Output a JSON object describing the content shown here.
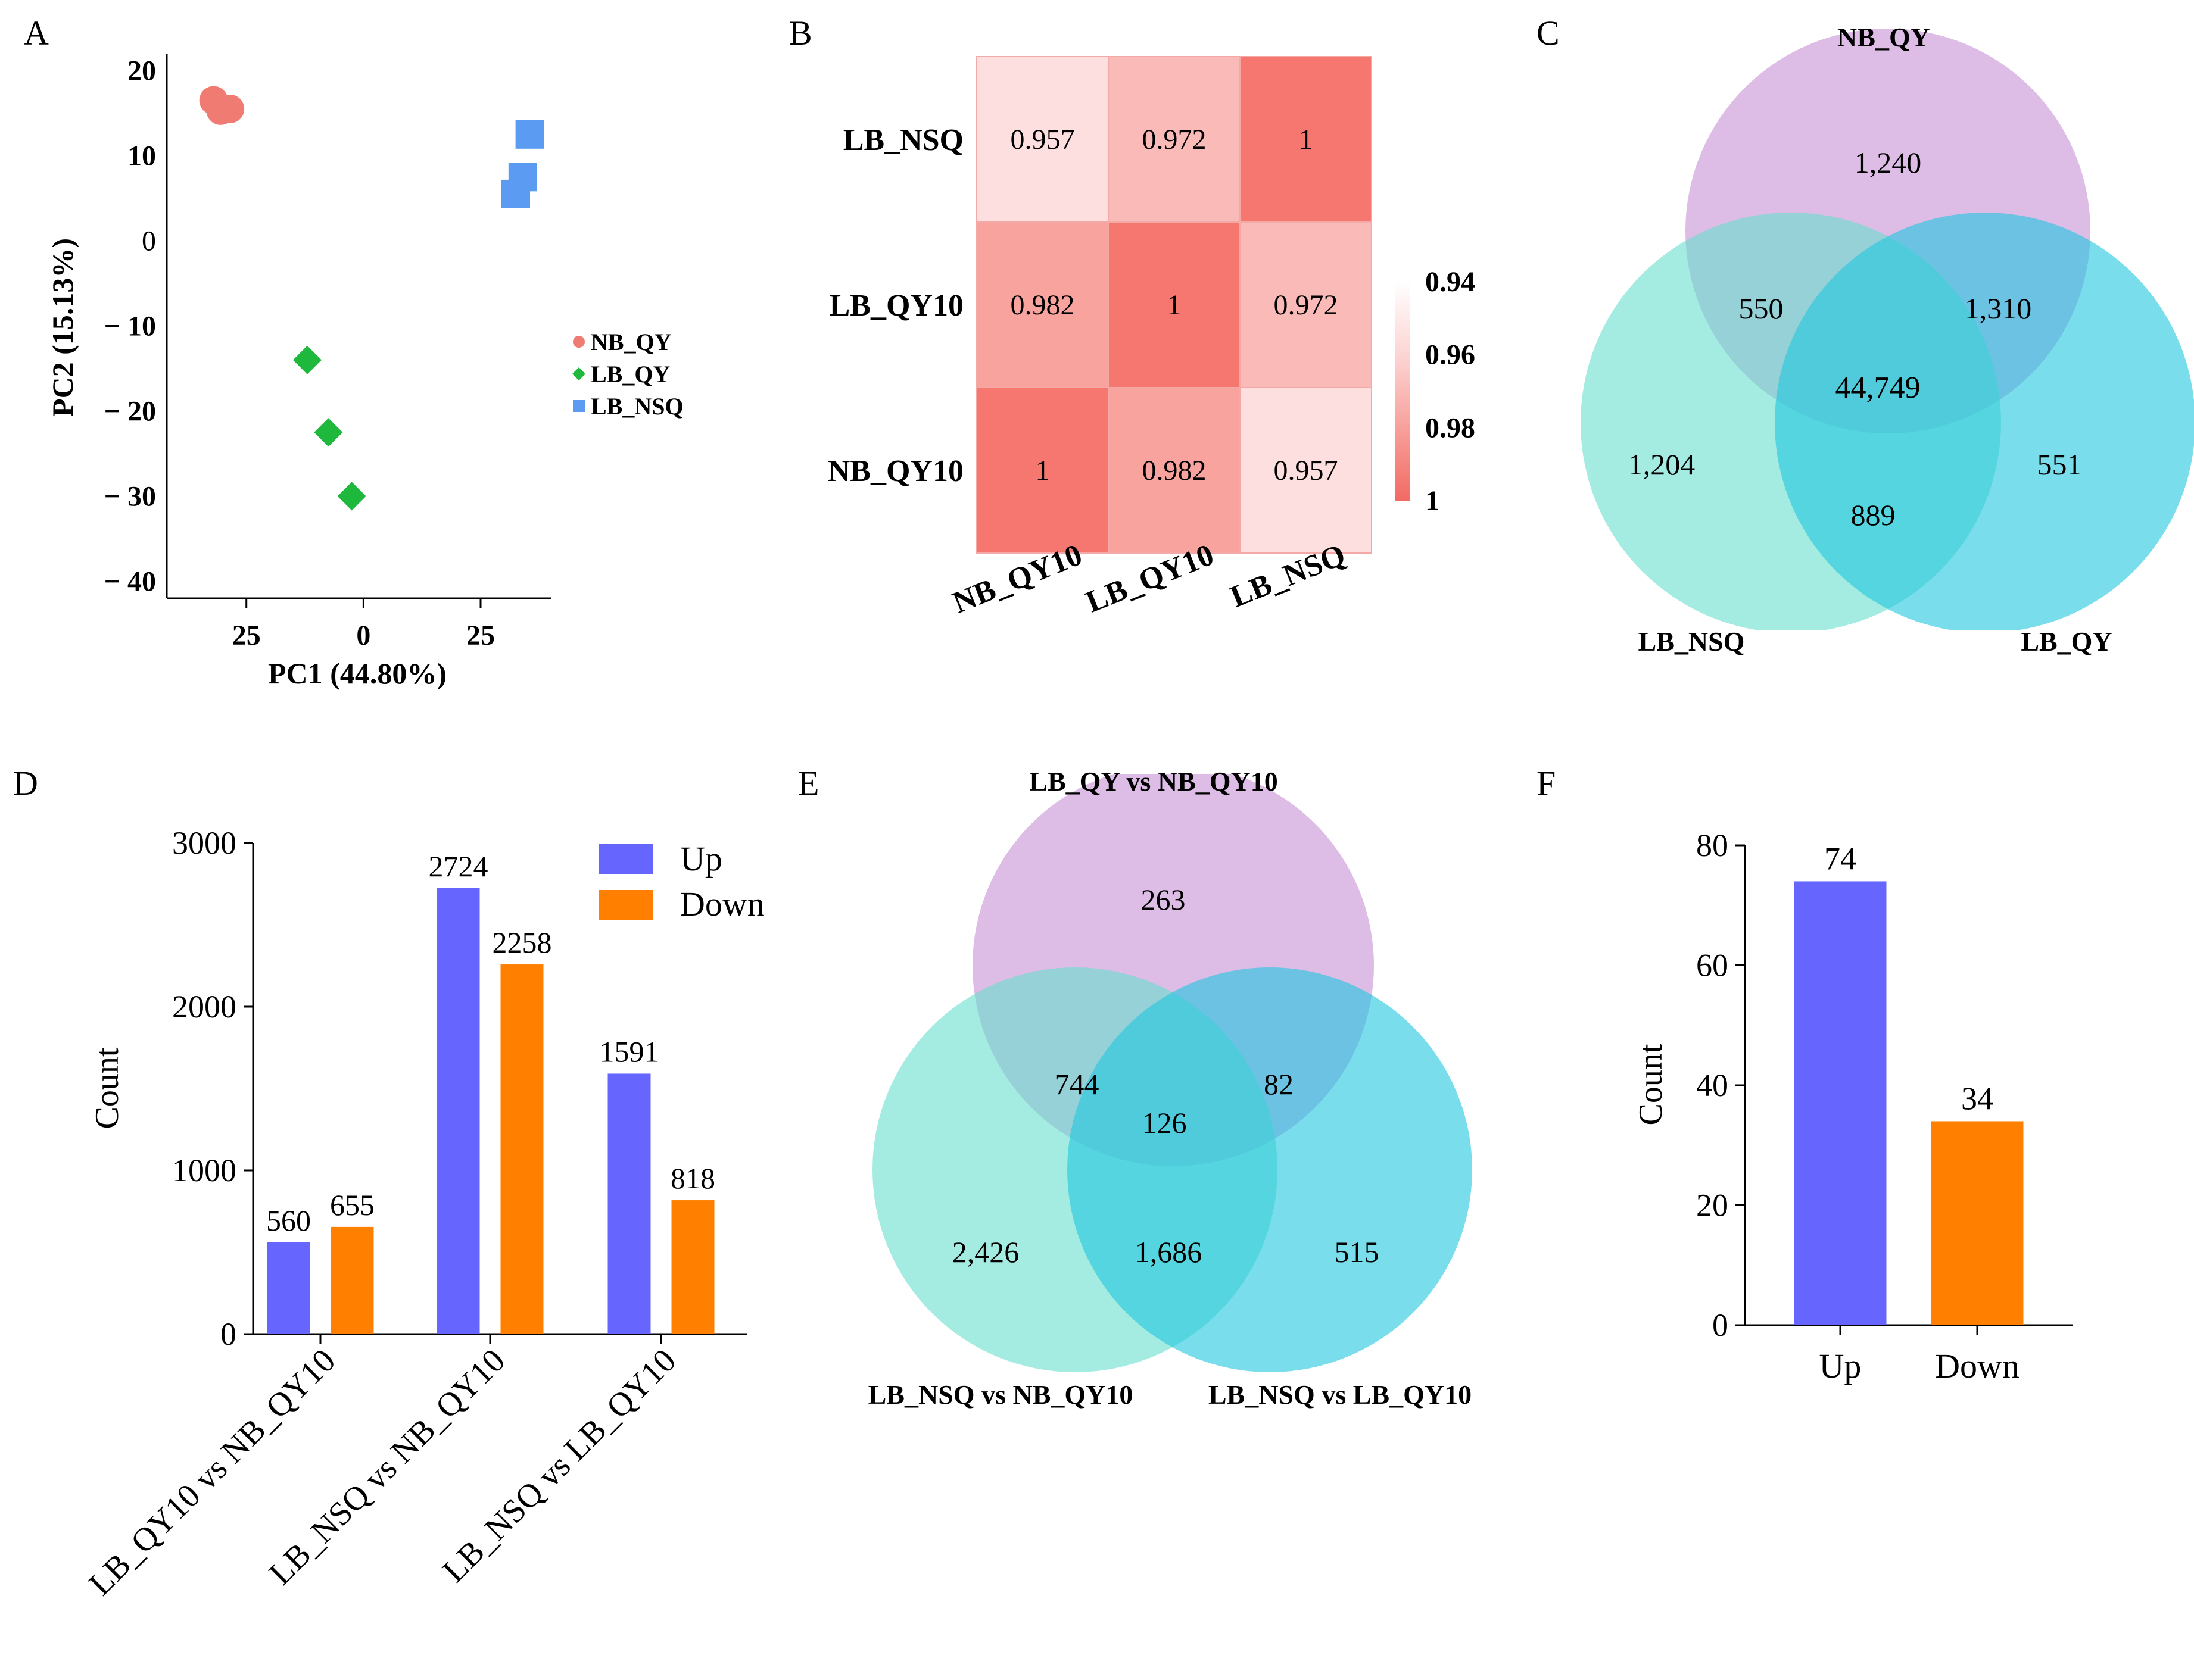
{
  "panel_letters": [
    "A",
    "B",
    "C",
    "D",
    "E",
    "F"
  ],
  "colors": {
    "nb": "#f07b72",
    "lbqy": "#1db83c",
    "lbnsq": "#5b9bf2",
    "up": "#6666ff",
    "down": "#ff8000",
    "heat_hi": "#f57770",
    "heat_lo": "#fde4e4",
    "venn_top": "#c690d6",
    "venn_left": "#67e0cf",
    "venn_right": "#4fd1e8"
  },
  "chart_data": [
    {
      "panel": "A",
      "type": "scatter",
      "xlabel": "PC1 (44.80%)",
      "ylabel": "PC2 (15.13%)",
      "xlim": [
        -42,
        40
      ],
      "ylim": [
        -42,
        22
      ],
      "xticks": [
        {
          "v": -25,
          "label": "25"
        },
        {
          "v": 0,
          "label": "0"
        },
        {
          "v": 25,
          "label": "25"
        }
      ],
      "yticks": [
        {
          "v": 20,
          "label": "20"
        },
        {
          "v": 10,
          "label": "10"
        },
        {
          "v": 0,
          "label": "0"
        },
        {
          "v": -10,
          "label": "− 10"
        },
        {
          "v": -20,
          "label": "− 20"
        },
        {
          "v": -30,
          "label": "− 30"
        },
        {
          "v": -40,
          "label": "− 40"
        }
      ],
      "series": [
        {
          "name": "NB_QY",
          "shape": "circle",
          "points": [
            [
              -32,
              16.5
            ],
            [
              -30.5,
              15.3
            ],
            [
              -28.5,
              15.5
            ]
          ]
        },
        {
          "name": "LB_QY",
          "shape": "diamond",
          "points": [
            [
              -12,
              -14
            ],
            [
              -7.5,
              -22.5
            ],
            [
              -2.5,
              -30
            ]
          ]
        },
        {
          "name": "LB_NSQ",
          "shape": "square",
          "points": [
            [
              35.5,
              12.5
            ],
            [
              34,
              7.5
            ],
            [
              32.5,
              5.5
            ]
          ]
        }
      ]
    },
    {
      "panel": "B",
      "type": "heatmap",
      "rows": [
        "LB_NSQ",
        "LB_QY10",
        "NB_QY10"
      ],
      "cols": [
        "NB_QY10",
        "LB_QY10",
        "LB_NSQ"
      ],
      "values": [
        [
          0.957,
          0.972,
          1
        ],
        [
          0.982,
          1,
          0.972
        ],
        [
          1,
          0.982,
          0.957
        ]
      ],
      "value_labels": [
        [
          "0.957",
          "0.972",
          "1"
        ],
        [
          "0.982",
          "1",
          "0.972"
        ],
        [
          "1",
          "0.982",
          "0.957"
        ]
      ],
      "colorbar": {
        "ticks": [
          "0.94",
          "0.96",
          "0.98",
          "1"
        ],
        "range": [
          0.94,
          1
        ]
      }
    },
    {
      "panel": "C",
      "type": "venn",
      "sets": [
        "NB_QY",
        "LB_NSQ",
        "LB_QY"
      ],
      "regions": {
        "top_only": "1,240",
        "top_left": "550",
        "top_right": "1,310",
        "center": "44,749",
        "left_only": "1,204",
        "right_only": "551",
        "left_right": "889"
      }
    },
    {
      "panel": "D",
      "type": "bar",
      "ylabel": "Count",
      "ylim": [
        0,
        3000
      ],
      "yticks": [
        "0",
        "1000",
        "2000",
        "3000"
      ],
      "categories": [
        "LB_QY10 vs NB_QY10",
        "LB_NSQ vs NB_QY10",
        "LB_NSQ vs LB_QY10"
      ],
      "series": [
        {
          "name": "Up",
          "values": [
            560,
            2724,
            1591
          ],
          "labels": [
            "560",
            "2724",
            "1591"
          ]
        },
        {
          "name": "Down",
          "values": [
            655,
            2258,
            818
          ],
          "labels": [
            "655",
            "2258",
            "818"
          ]
        }
      ],
      "legend": [
        "Up",
        "Down"
      ]
    },
    {
      "panel": "E",
      "type": "venn",
      "sets": [
        "LB_QY vs NB_QY10",
        "LB_NSQ vs NB_QY10",
        "LB_NSQ vs LB_QY10"
      ],
      "regions": {
        "top_only": "263",
        "top_left": "744",
        "top_right": "82",
        "center": "126",
        "left_only": "2,426",
        "right_only": "515",
        "left_right": "1,686"
      }
    },
    {
      "panel": "F",
      "type": "bar",
      "ylabel": "Count",
      "ylim": [
        0,
        80
      ],
      "yticks": [
        "0",
        "20",
        "40",
        "60",
        "80"
      ],
      "categories": [
        "Up",
        "Down"
      ],
      "values": [
        74,
        34
      ],
      "labels": [
        "74",
        "34"
      ]
    }
  ]
}
